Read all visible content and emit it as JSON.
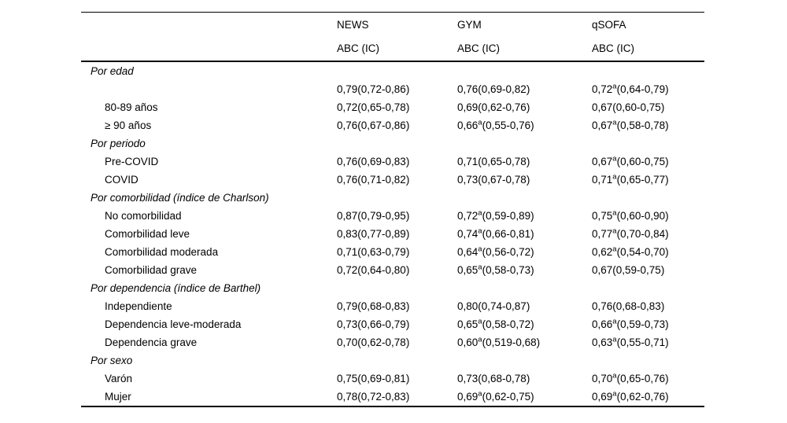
{
  "table": {
    "header": {
      "columns": [
        "NEWS",
        "GYM",
        "qSOFA"
      ],
      "subheaders": [
        "ABC (IC)",
        "ABC (IC)",
        "ABC (IC)"
      ]
    },
    "sections": [
      {
        "title": "Por edad",
        "rows": [
          {
            "label": "",
            "values": [
              "0,79(0,72-0,86)",
              "0,76(0,69-0,82)",
              "0,72^a(0,64-0,79)"
            ]
          },
          {
            "label": "80-89 años",
            "values": [
              "0,72(0,65-0,78)",
              "0,69(0,62-0,76)",
              "0,67(0,60-0,75)"
            ]
          },
          {
            "label": "≥ 90 años",
            "values": [
              "0,76(0,67-0,86)",
              "0,66^a(0,55-0,76)",
              "0,67^a(0,58-0,78)"
            ]
          }
        ]
      },
      {
        "title": "Por periodo",
        "rows": [
          {
            "label": "Pre-COVID",
            "values": [
              "0,76(0,69-0,83)",
              "0,71(0,65-0,78)",
              "0,67^a(0,60-0,75)"
            ]
          },
          {
            "label": "COVID",
            "values": [
              "0,76(0,71-0,82)",
              "0,73(0,67-0,78)",
              "0,71^a(0,65-0,77)"
            ]
          }
        ]
      },
      {
        "title": "Por comorbilidad (índice de Charlson)",
        "rows": [
          {
            "label": "No comorbilidad",
            "values": [
              "0,87(0,79-0,95)",
              "0,72^a(0,59-0,89)",
              "0,75^a(0,60-0,90)"
            ]
          },
          {
            "label": "Comorbilidad leve",
            "values": [
              "0,83(0,77-0,89)",
              "0,74^a(0,66-0,81)",
              "0,77^a(0,70-0,84)"
            ]
          },
          {
            "label": "Comorbilidad moderada",
            "values": [
              "0,71(0,63-0,79)",
              "0,64^a(0,56-0,72)",
              "0,62^a(0,54-0,70)"
            ]
          },
          {
            "label": "Comorbilidad grave",
            "values": [
              "0,72(0,64-0,80)",
              "0,65^a(0,58-0,73)",
              "0,67(0,59-0,75)"
            ]
          }
        ]
      },
      {
        "title": "Por dependencia (índice de Barthel)",
        "rows": [
          {
            "label": "Independiente",
            "values": [
              "0,79(0,68-0,83)",
              "0,80(0,74-0,87)",
              "0,76(0,68-0,83)"
            ]
          },
          {
            "label": "Dependencia leve-moderada",
            "values": [
              "0,73(0,66-0,79)",
              "0,65^a(0,58-0,72)",
              "0,66^a(0,59-0,73)"
            ]
          },
          {
            "label": "Dependencia grave",
            "values": [
              "0,70(0,62-0,78)",
              "0,60^a(0,519-0,68)",
              "0,63^a(0,55-0,71)"
            ]
          }
        ]
      },
      {
        "title": "Por sexo",
        "rows": [
          {
            "label": "Varón",
            "values": [
              "0,75(0,69-0,81)",
              "0,73(0,68-0,78)",
              "0,70^a(0,65-0,76)"
            ]
          },
          {
            "label": "Mujer",
            "values": [
              "0,78(0,72-0,83)",
              "0,69^a(0,62-0,75)",
              "0,69^a(0,62-0,76)"
            ]
          }
        ]
      }
    ]
  }
}
